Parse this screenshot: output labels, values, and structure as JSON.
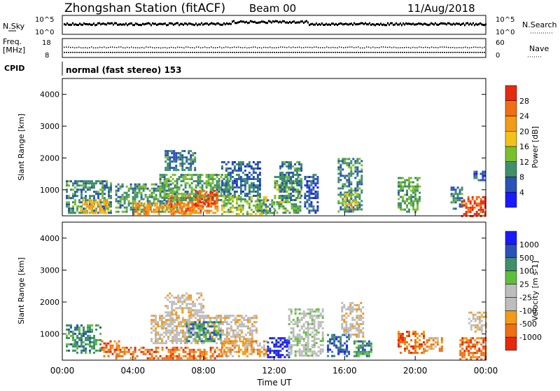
{
  "header": {
    "station": "Zhongshan Station (fitACF)",
    "beam": "Beam 00",
    "date": "11/Aug/2018"
  },
  "nsky_panel": {
    "left_label": "N.Sky",
    "right_label": "N.Search",
    "left_ticks": [
      "10^5",
      "10^0"
    ],
    "right_ticks": [
      "10^5",
      "10^0"
    ]
  },
  "freq_panel": {
    "left_label_1": "Freq.",
    "left_label_2": "[MHz]",
    "right_label": "Nave",
    "left_ticks": [
      "18",
      "8"
    ],
    "right_ticks": [
      "60",
      "0"
    ]
  },
  "cpid": {
    "label": "CPID",
    "text": "normal (fast stereo) 153"
  },
  "x_axis": {
    "label": "Time UT",
    "ticks": [
      "00:00",
      "04:00",
      "08:00",
      "12:00",
      "16:00",
      "20:00",
      "00:00"
    ]
  },
  "colors": {
    "power": [
      "#1a1aff",
      "#2a52b8",
      "#3f8f6a",
      "#7bbf2e",
      "#f2c21a",
      "#f39a16",
      "#f06f10",
      "#e62a0c"
    ],
    "velocity": [
      "#e62a0c",
      "#f06f10",
      "#f39a16",
      "#bdbdbd",
      "#bdbdbd",
      "#5fbf3a",
      "#3f8f6a",
      "#2a52b8",
      "#1a1aff"
    ]
  },
  "chart_data": [
    {
      "type": "heatmap",
      "title": "",
      "xlabel": "",
      "ylabel": "Slant Range [km]",
      "xlim": [
        0,
        24
      ],
      "ylim": [
        180,
        4500
      ],
      "y_ticks": [
        "1000",
        "2000",
        "3000",
        "4000"
      ],
      "colorbar": {
        "label": "Power [dB]",
        "ticks": [
          "4",
          "8",
          "12",
          "16",
          "20",
          "24",
          "28"
        ],
        "range": [
          0,
          30
        ]
      },
      "regions": [
        {
          "t0": 0.2,
          "t1": 2.8,
          "r0": 250,
          "r1": 1300,
          "v": 9
        },
        {
          "t0": 1.0,
          "t1": 2.6,
          "r0": 300,
          "r1": 700,
          "v": 18
        },
        {
          "t0": 3.0,
          "t1": 6.5,
          "r0": 300,
          "r1": 1200,
          "v": 10
        },
        {
          "t0": 4.0,
          "t1": 7.5,
          "r0": 250,
          "r1": 600,
          "v": 21
        },
        {
          "t0": 6.0,
          "t1": 8.8,
          "r0": 250,
          "r1": 900,
          "v": 23
        },
        {
          "t0": 5.5,
          "t1": 9.5,
          "r0": 700,
          "r1": 1500,
          "v": 11
        },
        {
          "t0": 5.8,
          "t1": 7.5,
          "r0": 1600,
          "r1": 2250,
          "v": 8
        },
        {
          "t0": 7.5,
          "t1": 8.8,
          "r0": 500,
          "r1": 1000,
          "v": 27
        },
        {
          "t0": 9.0,
          "t1": 11.2,
          "r0": 800,
          "r1": 1900,
          "v": 7
        },
        {
          "t0": 9.0,
          "t1": 11.5,
          "r0": 250,
          "r1": 800,
          "v": 14
        },
        {
          "t0": 11.0,
          "t1": 12.0,
          "r0": 300,
          "r1": 700,
          "v": 10
        },
        {
          "t0": 12.0,
          "t1": 13.5,
          "r0": 300,
          "r1": 1500,
          "v": 12
        },
        {
          "t0": 12.3,
          "t1": 13.6,
          "r0": 700,
          "r1": 1900,
          "v": 8
        },
        {
          "t0": 13.7,
          "t1": 14.5,
          "r0": 300,
          "r1": 1500,
          "v": 6
        },
        {
          "t0": 15.6,
          "t1": 17.0,
          "r0": 300,
          "r1": 2000,
          "v": 9
        },
        {
          "t0": 16.0,
          "t1": 16.8,
          "r0": 400,
          "r1": 900,
          "v": 17
        },
        {
          "t0": 19.0,
          "t1": 20.2,
          "r0": 300,
          "r1": 1400,
          "v": 11
        },
        {
          "t0": 22.0,
          "t1": 22.8,
          "r0": 400,
          "r1": 1100,
          "v": 8
        },
        {
          "t0": 22.6,
          "t1": 24.0,
          "r0": 200,
          "r1": 800,
          "v": 28
        },
        {
          "t0": 23.3,
          "t1": 24.0,
          "r0": 1300,
          "r1": 1600,
          "v": 6
        }
      ]
    },
    {
      "type": "heatmap",
      "title": "",
      "xlabel": "Time UT",
      "ylabel": "Slant Range [km]",
      "xlim": [
        0,
        24
      ],
      "ylim": [
        180,
        4500
      ],
      "y_ticks": [
        "1000",
        "2000",
        "3000",
        "4000"
      ],
      "colorbar": {
        "label": "Velocity [m s-1]",
        "ticks": [
          "1000",
          "500",
          "100",
          "25",
          "-25",
          "-100",
          "-500",
          "-1000"
        ]
      },
      "regions": [
        {
          "t0": 0.2,
          "t1": 2.2,
          "r0": 400,
          "r1": 1300,
          "v": 6
        },
        {
          "t0": 2.2,
          "t1": 3.2,
          "r0": 300,
          "r1": 800,
          "v": 1
        },
        {
          "t0": 3.0,
          "t1": 9.0,
          "r0": 250,
          "r1": 600,
          "v": 1
        },
        {
          "t0": 5.0,
          "t1": 11.0,
          "r0": 700,
          "r1": 1600,
          "v": 3
        },
        {
          "t0": 5.8,
          "t1": 8.0,
          "r0": 1600,
          "r1": 2300,
          "v": 3
        },
        {
          "t0": 7.0,
          "t1": 9.0,
          "r0": 800,
          "r1": 1400,
          "v": 6
        },
        {
          "t0": 9.0,
          "t1": 11.5,
          "r0": 300,
          "r1": 800,
          "v": 2
        },
        {
          "t0": 11.6,
          "t1": 12.8,
          "r0": 300,
          "r1": 900,
          "v": 8
        },
        {
          "t0": 12.8,
          "t1": 14.8,
          "r0": 300,
          "r1": 1800,
          "v": 4
        },
        {
          "t0": 15.0,
          "t1": 16.2,
          "r0": 300,
          "r1": 1000,
          "v": 7
        },
        {
          "t0": 15.8,
          "t1": 17.0,
          "r0": 900,
          "r1": 2000,
          "v": 3
        },
        {
          "t0": 16.5,
          "t1": 17.5,
          "r0": 300,
          "r1": 800,
          "v": 6
        },
        {
          "t0": 19.0,
          "t1": 20.5,
          "r0": 400,
          "r1": 1100,
          "v": 1
        },
        {
          "t0": 20.5,
          "t1": 21.5,
          "r0": 500,
          "r1": 900,
          "v": 2
        },
        {
          "t0": 22.5,
          "t1": 24.0,
          "r0": 200,
          "r1": 900,
          "v": 1
        },
        {
          "t0": 23.0,
          "t1": 24.0,
          "r0": 1100,
          "r1": 1700,
          "v": 3
        }
      ]
    }
  ]
}
